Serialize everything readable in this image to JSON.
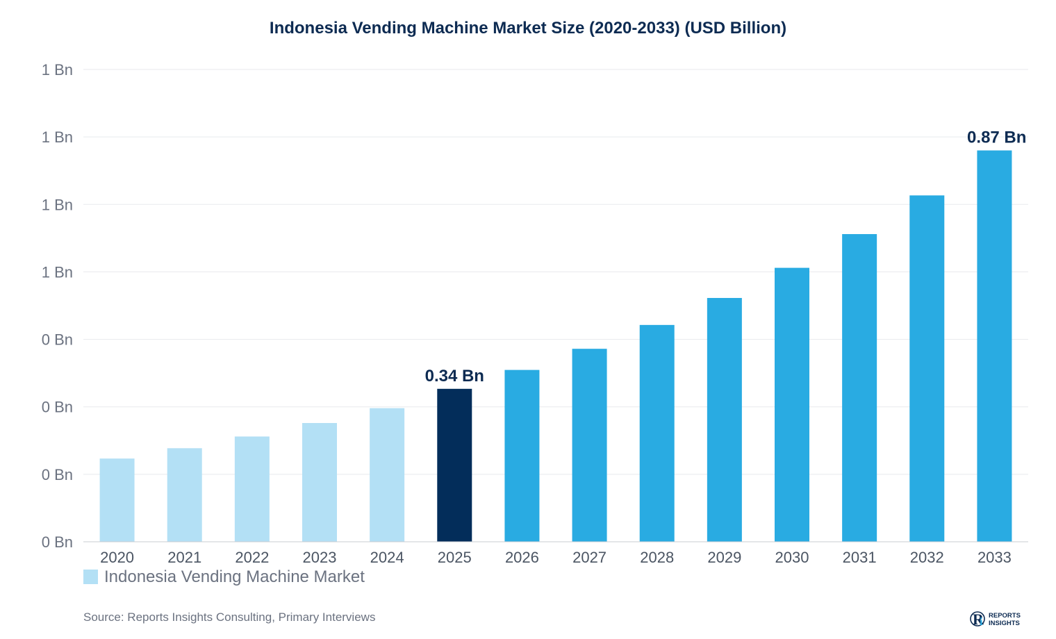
{
  "chart_data": {
    "type": "bar",
    "title": "Indonesia Vending Machine Market Size (2020-2033) (USD Billion)",
    "categories": [
      "2020",
      "2021",
      "2022",
      "2023",
      "2024",
      "2025",
      "2026",
      "2027",
      "2028",
      "2029",
      "2030",
      "2031",
      "2032",
      "2033"
    ],
    "series": [
      {
        "name": "Indonesia Vending Machine Market",
        "values": [
          0.185,
          0.208,
          0.234,
          0.264,
          0.297,
          0.34,
          0.382,
          0.429,
          0.482,
          0.542,
          0.609,
          0.684,
          0.77,
          0.87
        ]
      }
    ],
    "ylim": [
      0,
      1.05
    ],
    "yticks": [
      0,
      0.15,
      0.3,
      0.45,
      0.6,
      0.75,
      0.9,
      1.05
    ],
    "ytick_labels": [
      "0 Bn",
      "0 Bn",
      "0 Bn",
      "0 Bn",
      "1 Bn",
      "1 Bn",
      "1 Bn",
      "1 Bn"
    ],
    "data_labels": [
      {
        "category": "2025",
        "text": "0.34 Bn"
      },
      {
        "category": "2033",
        "text": "0.87 Bn"
      }
    ],
    "colors": {
      "historical": "#b3e0f5",
      "base_year": "#032d5a",
      "forecast": "#29abe2",
      "legend_swatch": "#b3e0f5"
    },
    "base_year": "2025",
    "grid": true,
    "legend_position": "bottom-left"
  },
  "source": "Source: Reports Insights Consulting, Primary Interviews",
  "logo": {
    "text_line1": "REPORTS",
    "text_line2": "INSIGHTS"
  }
}
